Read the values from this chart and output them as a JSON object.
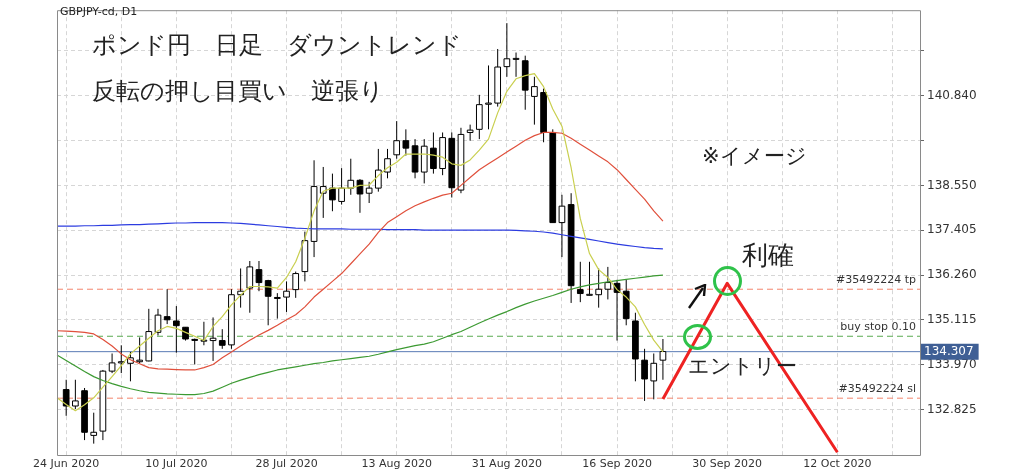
{
  "chart_data": {
    "type": "candlestick",
    "title": "ポンド円　日足　ダウントレンド",
    "subtitle": "反転の押し目買い　逆張り",
    "annotations": [
      "GBPJPY-cd, D1",
      "※イメージ",
      "利確",
      "エントリー"
    ],
    "categories": [
      null,
      "24 Jun 2020",
      null,
      null,
      null,
      null,
      null,
      null,
      null,
      null,
      null,
      null,
      null,
      "10 Jul 2020",
      null,
      null,
      null,
      null,
      null,
      null,
      null,
      null,
      null,
      null,
      null,
      "28 Jul 2020",
      null,
      null,
      null,
      null,
      null,
      null,
      null,
      null,
      null,
      null,
      null,
      "13 Aug 2020",
      null,
      null,
      null,
      null,
      null,
      null,
      null,
      null,
      null,
      null,
      null,
      "31 Aug 2020",
      null,
      null,
      null,
      null,
      null,
      null,
      null,
      null,
      null,
      null,
      null,
      "16 Sep 2020",
      null,
      null,
      null,
      null,
      null,
      null,
      null,
      null,
      null,
      null,
      null,
      "30 Sep 2020",
      null,
      null,
      null,
      null,
      null,
      null,
      null,
      null,
      null,
      null,
      null,
      "12 Oct 2020",
      null,
      null,
      null,
      null,
      null,
      null,
      null,
      null,
      null
    ],
    "ohlc": [
      null,
      [
        133.34,
        133.59,
        132.67,
        132.92
      ],
      [
        132.92,
        133.59,
        132.84,
        133.05
      ],
      [
        133.31,
        133.38,
        132.05,
        132.25
      ],
      [
        132.17,
        132.75,
        131.96,
        132.25
      ],
      [
        132.28,
        133.84,
        132.05,
        133.81
      ],
      [
        133.81,
        134.26,
        133.76,
        134.02
      ],
      [
        134.02,
        134.47,
        133.76,
        134.05
      ],
      [
        134.01,
        134.3,
        133.55,
        134.15
      ],
      [
        134.05,
        134.67,
        134.01,
        134.09
      ],
      [
        134.07,
        135.4,
        134.06,
        134.82
      ],
      [
        134.8,
        135.4,
        134.72,
        135.24
      ],
      [
        135.2,
        135.9,
        135.01,
        135.12
      ],
      [
        135.09,
        135.47,
        134.28,
        134.97
      ],
      [
        134.93,
        134.93,
        134.59,
        134.63
      ],
      [
        134.62,
        134.64,
        133.98,
        134.61
      ],
      [
        134.59,
        135.07,
        134.47,
        134.6
      ],
      [
        134.59,
        135.18,
        134.07,
        134.65
      ],
      [
        134.59,
        134.88,
        134.38,
        134.47
      ],
      [
        134.48,
        135.9,
        134.38,
        135.76
      ],
      [
        135.76,
        136.43,
        135.43,
        135.85
      ],
      [
        135.93,
        136.62,
        135.3,
        136.47
      ],
      [
        136.4,
        136.62,
        135.85,
        136.07
      ],
      [
        136.12,
        136.14,
        134.98,
        135.72
      ],
      [
        135.69,
        135.8,
        135.15,
        135.67
      ],
      [
        135.7,
        136.1,
        135.32,
        135.85
      ],
      [
        135.89,
        136.35,
        135.68,
        136.3
      ],
      [
        136.35,
        137.37,
        136.1,
        137.14
      ],
      [
        137.12,
        139.19,
        136.72,
        138.52
      ],
      [
        138.35,
        139.02,
        137.72,
        138.52
      ],
      [
        138.48,
        138.85,
        137.89,
        138.18
      ],
      [
        138.14,
        138.99,
        138.06,
        138.48
      ],
      [
        138.48,
        139.23,
        138.31,
        138.68
      ],
      [
        138.68,
        138.71,
        137.85,
        138.33
      ],
      [
        138.35,
        138.64,
        138.1,
        138.48
      ],
      [
        138.48,
        139.48,
        138.39,
        138.94
      ],
      [
        138.89,
        139.48,
        138.73,
        139.23
      ],
      [
        139.33,
        140.19,
        139.23,
        139.69
      ],
      [
        139.69,
        139.98,
        139.31,
        139.5
      ],
      [
        139.56,
        139.73,
        138.73,
        138.89
      ],
      [
        138.89,
        139.73,
        138.6,
        139.55
      ],
      [
        139.5,
        139.9,
        138.85,
        138.98
      ],
      [
        138.98,
        139.9,
        138.81,
        139.77
      ],
      [
        139.75,
        139.9,
        138.24,
        138.49
      ],
      [
        138.43,
        140.02,
        138.35,
        139.85
      ],
      [
        139.9,
        140.1,
        139.69,
        139.96
      ],
      [
        139.98,
        140.86,
        139.73,
        140.61
      ],
      [
        140.62,
        141.61,
        139.98,
        140.65
      ],
      [
        140.65,
        142.03,
        140.56,
        141.57
      ],
      [
        141.58,
        142.69,
        141.32,
        141.78
      ],
      [
        141.78,
        141.94,
        141.32,
        141.79
      ],
      [
        141.73,
        141.86,
        140.48,
        140.98
      ],
      [
        140.82,
        141.32,
        140.1,
        141.07
      ],
      [
        140.92,
        141.02,
        139.65,
        139.9
      ],
      [
        139.9,
        139.98,
        137.6,
        137.6
      ],
      [
        137.6,
        138.31,
        136.72,
        138.02
      ],
      [
        138.06,
        138.35,
        135.55,
        135.99
      ],
      [
        135.89,
        136.6,
        135.57,
        135.79
      ],
      [
        135.76,
        136.6,
        135.74,
        135.77
      ],
      [
        135.76,
        136.43,
        135.43,
        135.9
      ],
      [
        135.9,
        136.47,
        135.64,
        136.07
      ],
      [
        136.05,
        136.14,
        134.59,
        135.82
      ],
      [
        135.85,
        136.14,
        134.98,
        135.15
      ],
      [
        135.09,
        135.3,
        133.55,
        134.12
      ],
      [
        134.09,
        134.38,
        133.05,
        133.61
      ],
      [
        133.56,
        134.26,
        133.09,
        134.01
      ],
      [
        134.09,
        134.63,
        133.59,
        134.31
      ],
      null,
      null,
      null,
      null,
      null,
      null,
      null,
      null,
      null,
      null,
      null,
      null,
      null,
      null,
      null,
      null,
      null,
      null,
      null,
      null,
      null,
      null,
      null,
      null,
      null,
      null,
      null,
      null
    ],
    "series": [
      {
        "type": "line",
        "color": "#c9cf4f",
        "values": [
          133.13,
          132.96,
          132.8,
          132.95,
          133.13,
          133.4,
          133.67,
          133.95,
          134.25,
          134.45,
          134.65,
          134.84,
          134.95,
          134.9,
          134.8,
          134.7,
          134.59,
          134.95,
          135.2,
          135.5,
          135.75,
          135.97,
          135.97,
          135.96,
          135.93,
          136.2,
          136.6,
          137.2,
          137.9,
          138.4,
          138.48,
          138.48,
          138.48,
          138.55,
          138.56,
          138.8,
          139.0,
          139.14,
          139.35,
          139.35,
          139.35,
          139.32,
          139.27,
          139.1,
          139.06,
          139.2,
          139.45,
          139.73,
          140.4,
          140.95,
          141.27,
          141.35,
          141.4,
          141.07,
          140.5,
          140.06,
          139.0,
          137.7,
          136.81,
          136.4,
          136.2,
          135.89,
          135.7,
          135.45,
          135.0,
          134.6,
          134.3,
          null,
          null,
          null,
          null,
          null,
          null,
          null,
          null,
          null,
          null,
          null,
          null,
          null,
          null,
          null,
          null,
          null,
          null,
          null,
          null,
          null,
          null,
          null,
          null,
          null,
          null,
          null,
          null
        ]
      },
      {
        "type": "line",
        "color": "#e0503c",
        "values": [
          134.84,
          134.83,
          134.82,
          134.8,
          134.76,
          134.62,
          134.45,
          134.25,
          134.1,
          134.0,
          133.9,
          133.87,
          133.86,
          133.85,
          133.84,
          133.84,
          133.9,
          133.98,
          134.15,
          134.3,
          134.45,
          134.6,
          134.73,
          134.85,
          134.98,
          135.12,
          135.25,
          135.45,
          135.7,
          135.9,
          136.1,
          136.3,
          136.55,
          136.8,
          137.05,
          137.35,
          137.6,
          137.75,
          137.9,
          138.03,
          138.13,
          138.22,
          138.3,
          138.35,
          138.55,
          138.75,
          138.95,
          139.1,
          139.25,
          139.4,
          139.55,
          139.7,
          139.82,
          139.9,
          139.9,
          139.88,
          139.75,
          139.6,
          139.45,
          139.3,
          139.15,
          138.95,
          138.7,
          138.45,
          138.2,
          137.9,
          137.64,
          null,
          null,
          null,
          null,
          null,
          null,
          null,
          null,
          null,
          null,
          null,
          null,
          null,
          null,
          null,
          null,
          null,
          null,
          null,
          null,
          null,
          null,
          null,
          null,
          null,
          null,
          null,
          null
        ]
      },
      {
        "type": "line",
        "color": "#3c9a32",
        "values": [
          134.22,
          134.08,
          133.94,
          133.8,
          133.67,
          133.57,
          133.49,
          133.42,
          133.36,
          133.31,
          133.27,
          133.25,
          133.23,
          133.22,
          133.21,
          133.21,
          133.24,
          133.3,
          133.4,
          133.5,
          133.58,
          133.65,
          133.72,
          133.78,
          133.84,
          133.88,
          133.92,
          133.96,
          134.0,
          134.03,
          134.07,
          134.1,
          134.13,
          134.16,
          134.19,
          134.24,
          134.3,
          134.36,
          134.41,
          134.46,
          134.5,
          134.56,
          134.65,
          134.74,
          134.82,
          134.93,
          135.04,
          135.14,
          135.24,
          135.33,
          135.43,
          135.52,
          135.6,
          135.67,
          135.74,
          135.82,
          135.9,
          135.96,
          136.01,
          136.05,
          136.09,
          136.12,
          136.15,
          136.18,
          136.21,
          136.24,
          136.26,
          null,
          null,
          null,
          null,
          null,
          null,
          null,
          null,
          null,
          null,
          null,
          null,
          null,
          null,
          null,
          null,
          null,
          null,
          null,
          null,
          null,
          null,
          null,
          null,
          null,
          null,
          null,
          null
        ]
      },
      {
        "type": "line",
        "color": "#2c3ce0",
        "values": [
          137.51,
          137.51,
          137.51,
          137.52,
          137.52,
          137.53,
          137.53,
          137.54,
          137.55,
          137.55,
          137.56,
          137.57,
          137.58,
          137.59,
          137.59,
          137.6,
          137.6,
          137.6,
          137.6,
          137.59,
          137.58,
          137.56,
          137.54,
          137.52,
          137.5,
          137.48,
          137.46,
          137.45,
          137.44,
          137.44,
          137.44,
          137.44,
          137.43,
          137.43,
          137.43,
          137.43,
          137.42,
          137.42,
          137.42,
          137.42,
          137.41,
          137.41,
          137.41,
          137.41,
          137.41,
          137.41,
          137.41,
          137.41,
          137.41,
          137.41,
          137.4,
          137.39,
          137.38,
          137.36,
          137.33,
          137.29,
          137.25,
          137.21,
          137.17,
          137.13,
          137.09,
          137.05,
          137.02,
          136.99,
          136.96,
          136.94,
          136.93,
          null,
          null,
          null,
          null,
          null,
          null,
          null,
          null,
          null,
          null,
          null,
          null,
          null,
          null,
          null,
          null,
          null,
          null,
          null,
          null,
          null,
          null,
          null,
          null,
          null,
          null,
          null,
          null
        ]
      },
      {
        "type": "line",
        "color": "#ee2222",
        "values": [
          null,
          null,
          null,
          null,
          null,
          null,
          null,
          null,
          null,
          null,
          null,
          null,
          null,
          null,
          null,
          null,
          null,
          null,
          null,
          null,
          null,
          null,
          null,
          null,
          null,
          null,
          null,
          null,
          null,
          null,
          null,
          null,
          null,
          null,
          null,
          null,
          null,
          null,
          null,
          null,
          null,
          null,
          null,
          null,
          null,
          null,
          null,
          null,
          null,
          null,
          null,
          null,
          null,
          null,
          null,
          null,
          null,
          null,
          null,
          null,
          null,
          null,
          null,
          null,
          null,
          null,
          133.1,
          null,
          null,
          null,
          null,
          null,
          null,
          136.05,
          null,
          null,
          null,
          null,
          null,
          null,
          null,
          null,
          null,
          null,
          null,
          131.74,
          null,
          null,
          null,
          null,
          null,
          null,
          null,
          null,
          null
        ]
      }
    ],
    "ylim": [
      131.67,
      143.02
    ],
    "yticks": [
      {
        "value": 132.825,
        "label": "132.825"
      },
      {
        "value": 133.97,
        "label": "133.970"
      },
      {
        "value": 135.115,
        "label": "135.115"
      },
      {
        "value": 136.26,
        "label": "136.260"
      },
      {
        "value": 137.405,
        "label": "137.405"
      },
      {
        "value": 138.55,
        "label": "138.550"
      },
      {
        "value": 139.695,
        "label": null
      },
      {
        "value": 140.84,
        "label": "140.840"
      },
      {
        "value": 141.985,
        "label": null
      }
    ],
    "ref_lines": [
      {
        "axis": "y",
        "value": 135.9,
        "label": "#35492224 tp",
        "color": "#f4846c",
        "line_style": "dashed"
      },
      {
        "axis": "y",
        "value": 134.7,
        "label": "buy stop 0.10",
        "color": "#5aaa50",
        "line_style": "dashed"
      },
      {
        "axis": "y",
        "value": 133.12,
        "label": "#35492224 sl",
        "color": "#f4846c",
        "line_style": "dashed"
      },
      {
        "axis": "y",
        "value": 134.307,
        "label": "134.307",
        "color": "#5a7bb5",
        "line_style": "solid"
      }
    ],
    "grid": true
  }
}
